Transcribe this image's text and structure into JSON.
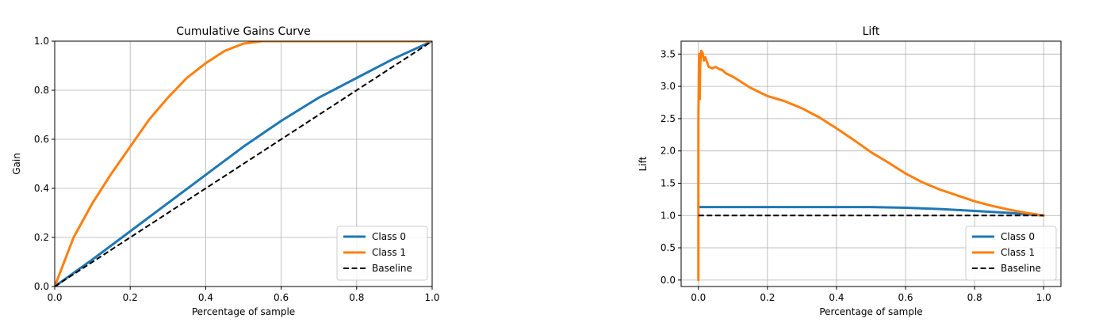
{
  "chart_data": [
    {
      "type": "line",
      "title": "Cumulative Gains Curve",
      "xlabel": "Percentage of sample",
      "ylabel": "Gain",
      "xlim": [
        0.0,
        1.0
      ],
      "ylim": [
        0.0,
        1.0
      ],
      "xticks": [
        "0.0",
        "0.2",
        "0.4",
        "0.6",
        "0.8",
        "1.0"
      ],
      "yticks": [
        "0.0",
        "0.2",
        "0.4",
        "0.6",
        "0.8",
        "1.0"
      ],
      "grid": true,
      "legend_position": "lower-right",
      "series": [
        {
          "name": "Class 0",
          "color": "#1f77b4",
          "style": "solid",
          "x": [
            0.0,
            0.1,
            0.2,
            0.3,
            0.4,
            0.5,
            0.6,
            0.7,
            0.8,
            0.9,
            1.0
          ],
          "y": [
            0.0,
            0.11,
            0.225,
            0.34,
            0.455,
            0.57,
            0.675,
            0.77,
            0.85,
            0.93,
            1.0
          ]
        },
        {
          "name": "Class 1",
          "color": "#ff7f0e",
          "style": "solid",
          "x": [
            0.0,
            0.05,
            0.1,
            0.15,
            0.2,
            0.25,
            0.3,
            0.35,
            0.4,
            0.45,
            0.5,
            0.55,
            0.6,
            0.7,
            0.8,
            0.9,
            1.0
          ],
          "y": [
            0.0,
            0.2,
            0.34,
            0.46,
            0.57,
            0.68,
            0.77,
            0.85,
            0.91,
            0.96,
            0.99,
            1.0,
            1.0,
            1.0,
            1.0,
            1.0,
            1.0
          ]
        },
        {
          "name": "Baseline",
          "color": "#000000",
          "style": "dashed",
          "x": [
            0.0,
            1.0
          ],
          "y": [
            0.0,
            1.0
          ]
        }
      ]
    },
    {
      "type": "line",
      "title": "Lift",
      "xlabel": "Percentage of sample",
      "ylabel": "Lift",
      "xlim": [
        -0.05,
        1.05
      ],
      "ylim": [
        -0.1,
        3.7
      ],
      "xticks": [
        "0.0",
        "0.2",
        "0.4",
        "0.6",
        "0.8",
        "1.0"
      ],
      "yticks": [
        "0.0",
        "0.5",
        "1.0",
        "1.5",
        "2.0",
        "2.5",
        "3.0",
        "3.5"
      ],
      "grid": true,
      "legend_position": "lower-right",
      "series": [
        {
          "name": "Class 0",
          "color": "#1f77b4",
          "style": "solid",
          "x": [
            0.0,
            0.1,
            0.2,
            0.3,
            0.4,
            0.5,
            0.6,
            0.7,
            0.8,
            0.9,
            1.0
          ],
          "y": [
            1.13,
            1.13,
            1.13,
            1.13,
            1.13,
            1.13,
            1.12,
            1.1,
            1.07,
            1.04,
            1.0
          ]
        },
        {
          "name": "Class 1",
          "color": "#ff7f0e",
          "style": "solid",
          "x": [
            0.0,
            0.0,
            0.002,
            0.004,
            0.005,
            0.008,
            0.012,
            0.016,
            0.02,
            0.03,
            0.04,
            0.05,
            0.06,
            0.07,
            0.08,
            0.1,
            0.15,
            0.2,
            0.25,
            0.3,
            0.35,
            0.4,
            0.45,
            0.5,
            0.55,
            0.6,
            0.65,
            0.7,
            0.75,
            0.8,
            0.85,
            0.9,
            0.95,
            1.0
          ],
          "y": [
            0.0,
            2.5,
            3.5,
            2.8,
            3.3,
            3.55,
            3.52,
            3.4,
            3.45,
            3.3,
            3.28,
            3.3,
            3.27,
            3.25,
            3.2,
            3.15,
            2.98,
            2.85,
            2.77,
            2.66,
            2.52,
            2.35,
            2.17,
            1.98,
            1.82,
            1.65,
            1.51,
            1.4,
            1.31,
            1.22,
            1.15,
            1.09,
            1.04,
            1.0
          ]
        },
        {
          "name": "Baseline",
          "color": "#000000",
          "style": "dashed",
          "x": [
            0.0,
            1.0
          ],
          "y": [
            1.0,
            1.0
          ]
        }
      ]
    }
  ]
}
